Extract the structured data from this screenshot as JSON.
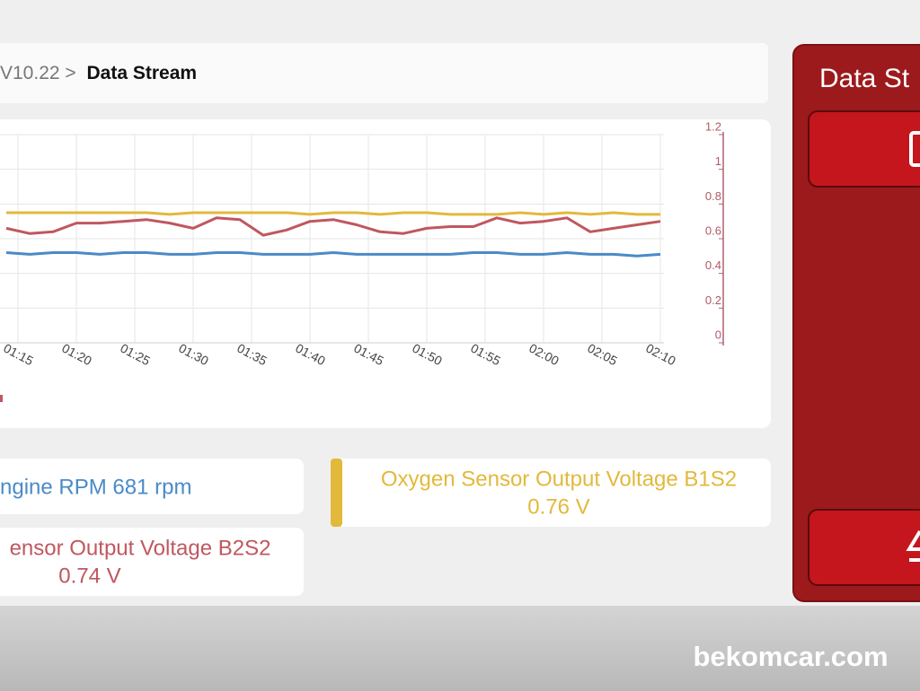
{
  "breadcrumb": {
    "path": "V10.22 >",
    "current": "Data Stream"
  },
  "chart": {
    "type": "line",
    "x": [
      74,
      76,
      78,
      80,
      82,
      84,
      86,
      88,
      90,
      92,
      94,
      96,
      98,
      100,
      102,
      104,
      106,
      108,
      110,
      112,
      114,
      116,
      118,
      120,
      122,
      124,
      126,
      128,
      130
    ],
    "xlim": [
      73.5,
      130.3
    ],
    "xticks": [
      {
        "value": 75,
        "label": "01:15"
      },
      {
        "value": 80,
        "label": "01:20"
      },
      {
        "value": 85,
        "label": "01:25"
      },
      {
        "value": 90,
        "label": "01:30"
      },
      {
        "value": 95,
        "label": "01:35"
      },
      {
        "value": 100,
        "label": "01:40"
      },
      {
        "value": 105,
        "label": "01:45"
      },
      {
        "value": 110,
        "label": "01:50"
      },
      {
        "value": 115,
        "label": "01:55"
      },
      {
        "value": 120,
        "label": "02:00"
      },
      {
        "value": 125,
        "label": "02:05"
      },
      {
        "value": 130,
        "label": "02:10"
      }
    ],
    "y2lim": [
      0,
      1.2
    ],
    "y2ticks": [
      0,
      0.2,
      0.4,
      0.6,
      0.8,
      1,
      1.2
    ],
    "grid": true,
    "series": [
      {
        "color": "#e2b93b",
        "axis": "y2",
        "values": [
          0.75,
          0.75,
          0.75,
          0.75,
          0.75,
          0.75,
          0.75,
          0.74,
          0.75,
          0.75,
          0.75,
          0.75,
          0.75,
          0.74,
          0.75,
          0.75,
          0.74,
          0.75,
          0.75,
          0.74,
          0.74,
          0.74,
          0.75,
          0.74,
          0.75,
          0.74,
          0.75,
          0.74,
          0.74
        ]
      },
      {
        "color": "#c0575f",
        "axis": "y2",
        "values": [
          0.66,
          0.63,
          0.64,
          0.69,
          0.69,
          0.7,
          0.71,
          0.69,
          0.66,
          0.72,
          0.71,
          0.62,
          0.65,
          0.7,
          0.71,
          0.68,
          0.64,
          0.63,
          0.66,
          0.67,
          0.67,
          0.72,
          0.69,
          0.7,
          0.72,
          0.64,
          0.66,
          0.68,
          0.7
        ]
      },
      {
        "color": "#4a8ac8",
        "axis": "y2",
        "values": [
          0.52,
          0.51,
          0.52,
          0.52,
          0.51,
          0.52,
          0.52,
          0.51,
          0.51,
          0.52,
          0.52,
          0.51,
          0.51,
          0.51,
          0.52,
          0.51,
          0.51,
          0.51,
          0.51,
          0.51,
          0.52,
          0.52,
          0.51,
          0.51,
          0.52,
          0.51,
          0.51,
          0.5,
          0.51
        ]
      }
    ]
  },
  "cards": [
    {
      "text": "ngine RPM 681 rpm"
    },
    {
      "text": "Oxygen Sensor Output Voltage B1S2",
      "value": "0.76 V"
    },
    {
      "text": "ensor Output Voltage B2S2",
      "value": "0.74 V"
    }
  ],
  "panel": {
    "title": "Data St"
  },
  "watermark": "bekomcar.com"
}
